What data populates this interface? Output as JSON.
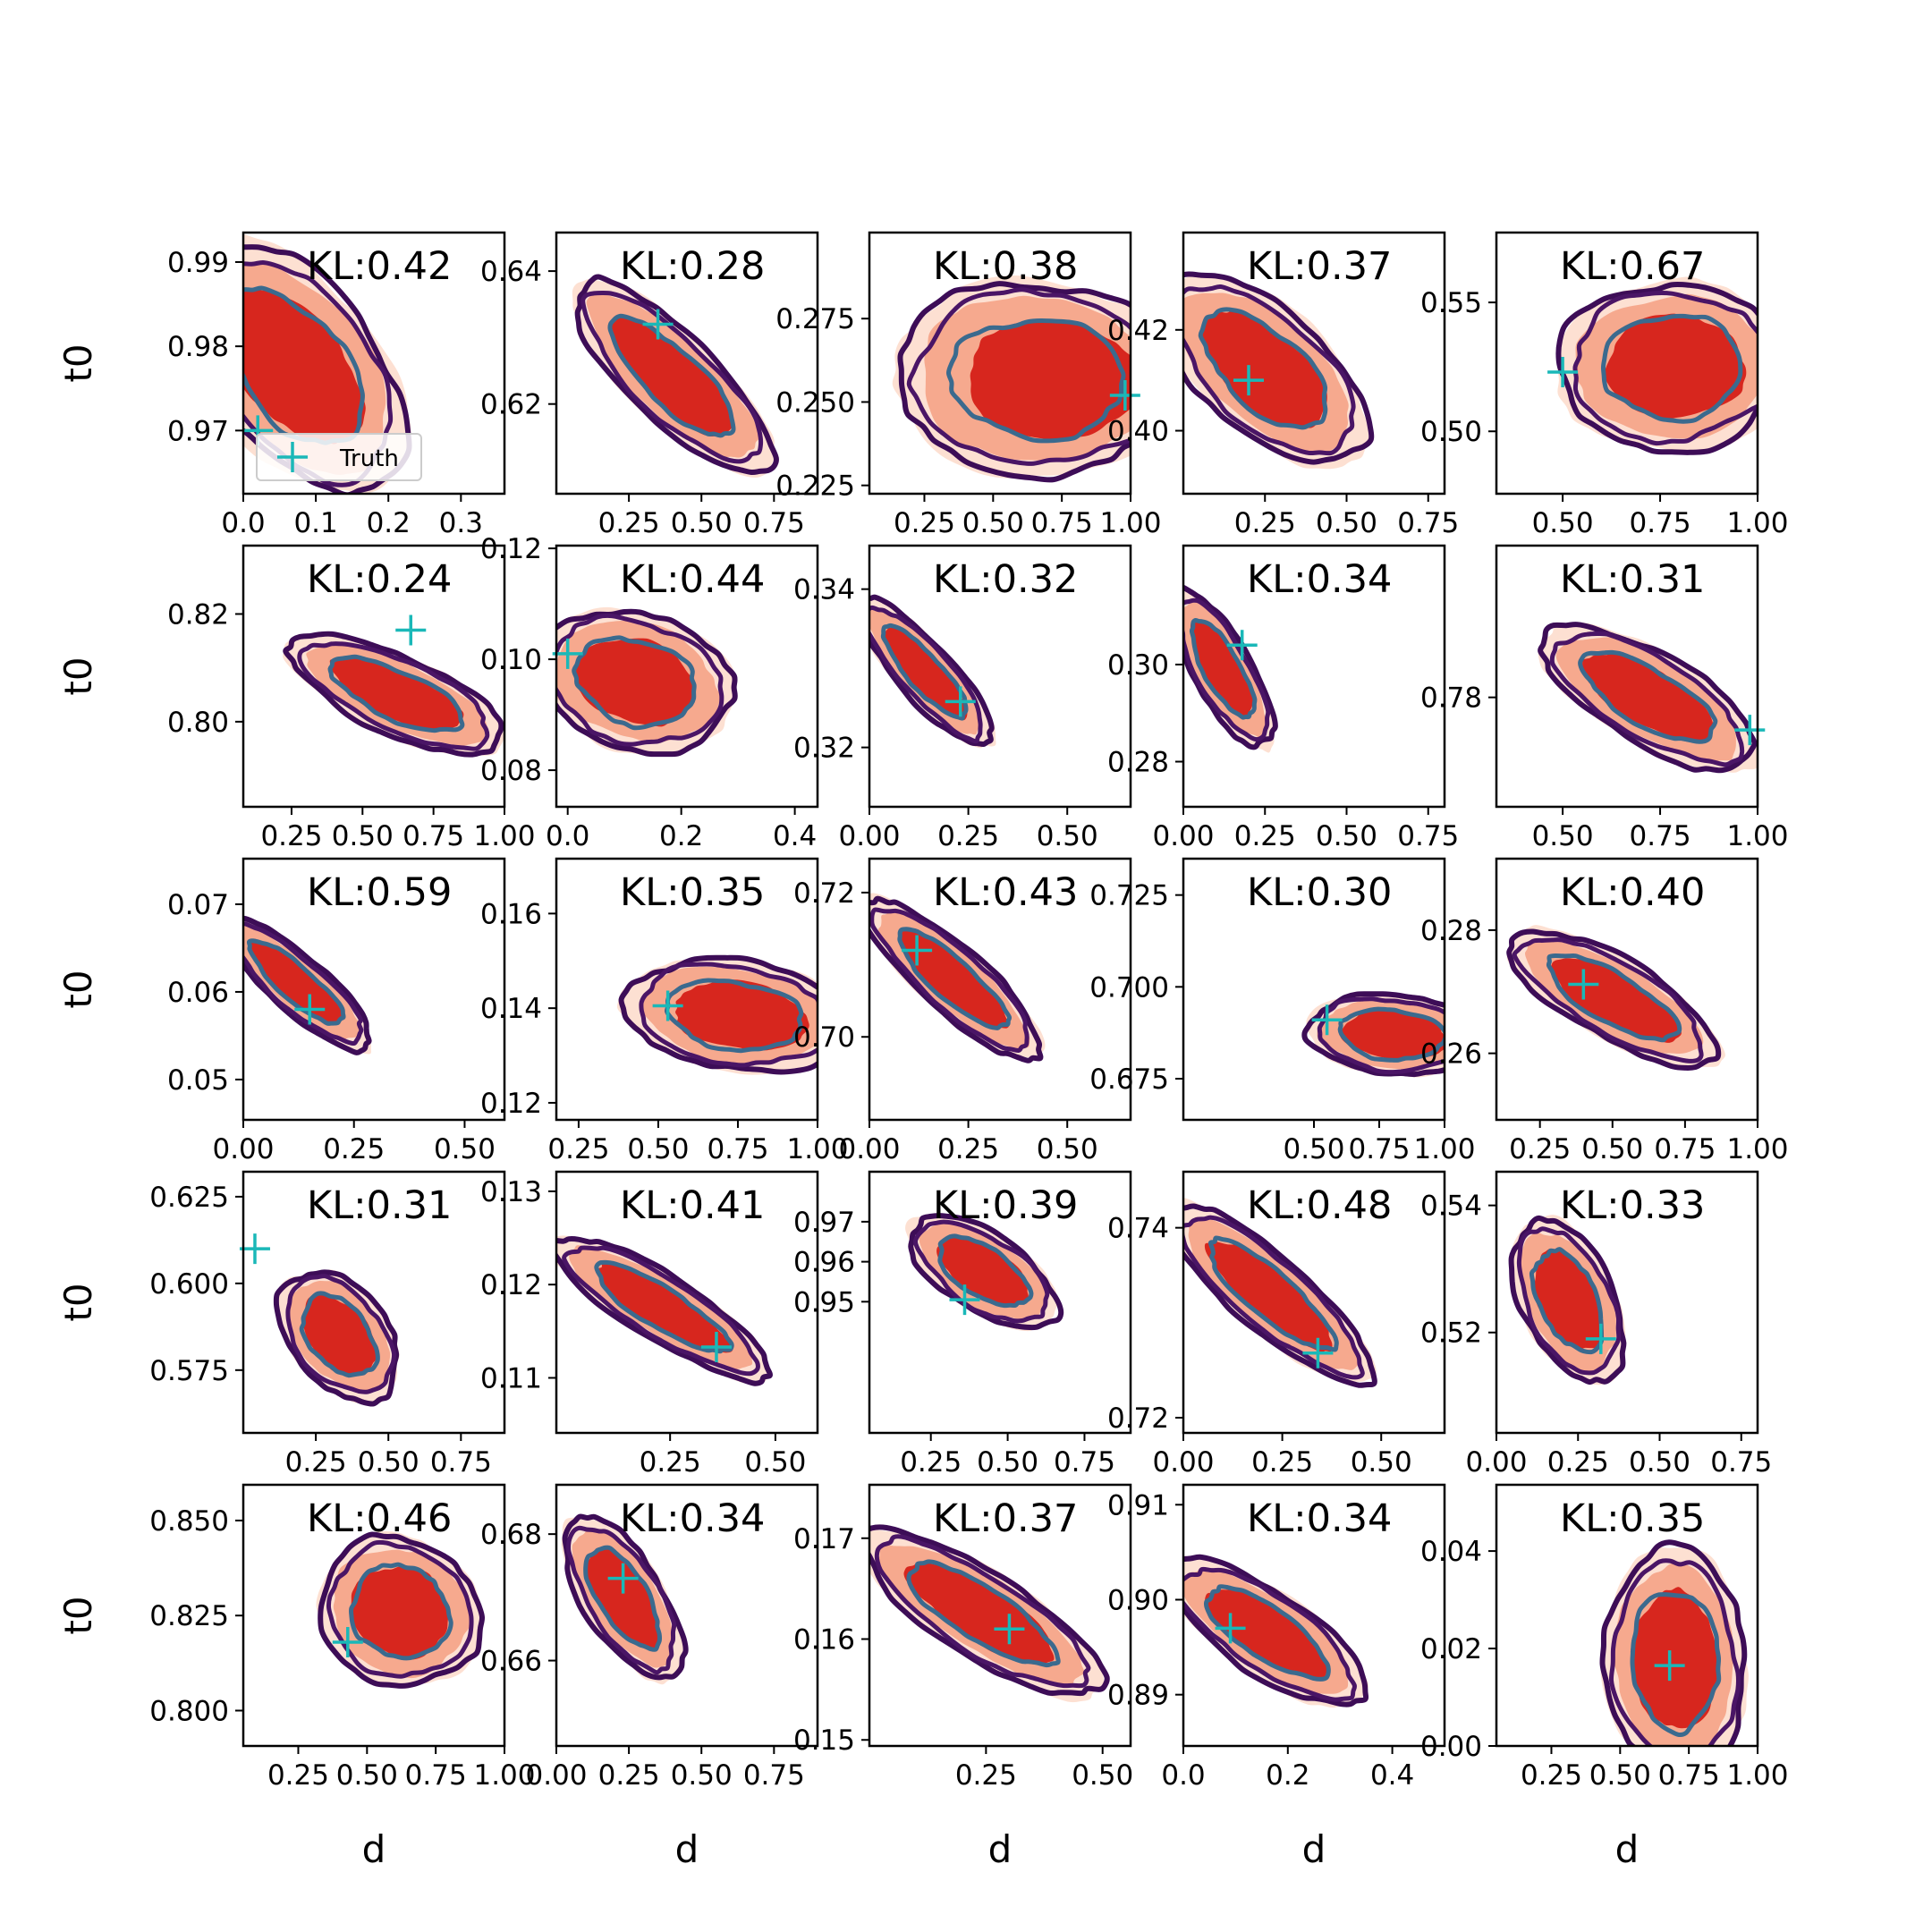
{
  "colors": {
    "kde_fill_outer": "#fde0d2",
    "kde_fill_mid": "#f6a98e",
    "kde_fill_inner": "#d7261e",
    "contour_outer": "#3d0d57",
    "contour_mid": "#4a1566",
    "contour_inner": "#3b6a8e",
    "truth_marker": "#1ab8b8"
  },
  "chart_data": {
    "type": "scatter",
    "xlabel": "d",
    "ylabel": "t0",
    "legend": {
      "label": "Truth",
      "location": "lower-left"
    },
    "panels": [
      {
        "kl": "KL:0.42",
        "xlim": [
          0,
          0.36
        ],
        "ylim": [
          0.9625,
          0.9935
        ],
        "xticks": [
          0.0,
          0.1,
          0.2,
          0.3
        ],
        "xtick_labels": [
          "0.0",
          "0.1",
          "0.2",
          "0.3"
        ],
        "yticks": [
          0.97,
          0.98,
          0.99
        ],
        "ytick_labels": [
          "0.97",
          "0.98",
          "0.99"
        ],
        "truth": [
          0.02,
          0.97
        ],
        "center": [
          0.07,
          0.9775
        ],
        "spread": [
          0.09,
          0.0087
        ],
        "corr": -0.5,
        "core_shift": 0.0,
        "legend": true
      },
      {
        "kl": "KL:0.28",
        "xlim": [
          0,
          0.9
        ],
        "ylim": [
          0.6065,
          0.6458
        ],
        "xticks": [
          0.25,
          0.5,
          0.75
        ],
        "xtick_labels": [
          "0.25",
          "0.50",
          "0.75"
        ],
        "yticks": [
          0.62,
          0.64
        ],
        "ytick_labels": [
          "0.62",
          "0.64"
        ],
        "truth": [
          0.35,
          0.632
        ],
        "center": [
          0.4,
          0.624
        ],
        "spread": [
          0.2,
          0.0085
        ],
        "corr": -0.8,
        "core_shift": 0.0
      },
      {
        "kl": "KL:0.38",
        "xlim": [
          0.05,
          1.0
        ],
        "ylim": [
          0.2225,
          0.3008
        ],
        "xticks": [
          0.25,
          0.5,
          0.75,
          1.0
        ],
        "xtick_labels": [
          "0.25",
          "0.50",
          "0.75",
          "1.00"
        ],
        "yticks": [
          0.225,
          0.25,
          0.275
        ],
        "ytick_labels": [
          "0.225",
          "0.250",
          "0.275"
        ],
        "truth": [
          0.98,
          0.252
        ],
        "center": [
          0.66,
          0.257
        ],
        "spread": [
          0.3,
          0.017
        ],
        "corr": -0.05,
        "core_shift": 0.2
      },
      {
        "kl": "KL:0.37",
        "xlim": [
          0,
          0.8
        ],
        "ylim": [
          0.3875,
          0.4393
        ],
        "xticks": [
          0.25,
          0.5,
          0.75
        ],
        "xtick_labels": [
          "0.25",
          "0.50",
          "0.75"
        ],
        "yticks": [
          0.4,
          0.42
        ],
        "ytick_labels": [
          "0.40",
          "0.42"
        ],
        "truth": [
          0.2,
          0.41
        ],
        "center": [
          0.25,
          0.412
        ],
        "spread": [
          0.18,
          0.011
        ],
        "corr": -0.6,
        "core_shift": 0.0
      },
      {
        "kl": "KL:0.67",
        "xlim": [
          0.33,
          1.0
        ],
        "ylim": [
          0.4758,
          0.5771
        ],
        "xticks": [
          0.5,
          0.75,
          1.0
        ],
        "xtick_labels": [
          "0.50",
          "0.75",
          "1.00"
        ],
        "yticks": [
          0.5,
          0.55
        ],
        "ytick_labels": [
          "0.50",
          "0.55"
        ],
        "truth": [
          0.5,
          0.523
        ],
        "center": [
          0.78,
          0.525
        ],
        "spread": [
          0.17,
          0.019
        ],
        "corr": 0.0,
        "core_shift": 0.05
      },
      {
        "kl": "KL:0.24",
        "xlim": [
          0.08,
          1.0
        ],
        "ylim": [
          0.7842,
          0.8327
        ],
        "xticks": [
          0.25,
          0.5,
          0.75,
          1.0
        ],
        "xtick_labels": [
          "0.25",
          "0.50",
          "0.75",
          "1.00"
        ],
        "yticks": [
          0.8,
          0.82
        ],
        "ytick_labels": [
          "0.80",
          "0.82"
        ],
        "truth": [
          0.67,
          0.817
        ],
        "center": [
          0.62,
          0.805
        ],
        "spread": [
          0.22,
          0.0065
        ],
        "corr": -0.7,
        "core_shift": 0.0
      },
      {
        "kl": "KL:0.44",
        "xlim": [
          -0.02,
          0.44
        ],
        "ylim": [
          0.0734,
          0.1205
        ],
        "xticks": [
          0.0,
          0.2,
          0.4
        ],
        "xtick_labels": [
          "0.0",
          "0.2",
          "0.4"
        ],
        "yticks": [
          0.08,
          0.1,
          0.12
        ],
        "ytick_labels": [
          "0.08",
          "0.10",
          "0.12"
        ],
        "truth": [
          0.0,
          0.101
        ],
        "center": [
          0.12,
          0.096
        ],
        "spread": [
          0.1,
          0.0075
        ],
        "corr": -0.2,
        "core_shift": 0.0
      },
      {
        "kl": "KL:0.32",
        "xlim": [
          0,
          0.66
        ],
        "ylim": [
          0.3125,
          0.3455
        ],
        "xticks": [
          0.0,
          0.25,
          0.5
        ],
        "xtick_labels": [
          "0.00",
          "0.25",
          "0.50"
        ],
        "yticks": [
          0.32,
          0.34
        ],
        "ytick_labels": [
          "0.32",
          "0.34"
        ],
        "truth": [
          0.23,
          0.3258
        ],
        "center": [
          0.14,
          0.3295
        ],
        "spread": [
          0.1,
          0.0055
        ],
        "corr": -0.85,
        "core_shift": 0.0
      },
      {
        "kl": "KL:0.34",
        "xlim": [
          0,
          0.8
        ],
        "ylim": [
          0.2707,
          0.3245
        ],
        "xticks": [
          0.0,
          0.25,
          0.5,
          0.75
        ],
        "xtick_labels": [
          "0.00",
          "0.25",
          "0.50",
          "0.75"
        ],
        "yticks": [
          0.28,
          0.3
        ],
        "ytick_labels": [
          "0.28",
          "0.30"
        ],
        "truth": [
          0.18,
          0.304
        ],
        "center": [
          0.12,
          0.299
        ],
        "spread": [
          0.09,
          0.0095
        ],
        "corr": -0.75,
        "core_shift": 0.0
      },
      {
        "kl": "KL:0.31",
        "xlim": [
          0.33,
          1.0
        ],
        "ylim": [
          0.7632,
          0.8033
        ],
        "xticks": [
          0.5,
          0.75,
          1.0
        ],
        "xtick_labels": [
          "0.50",
          "0.75",
          "1.00"
        ],
        "yticks": [
          0.78
        ],
        "ytick_labels": [
          "0.78"
        ],
        "truth": [
          0.98,
          0.775
        ],
        "center": [
          0.72,
          0.78
        ],
        "spread": [
          0.16,
          0.0065
        ],
        "corr": -0.7,
        "core_shift": 0.0
      },
      {
        "kl": "KL:0.59",
        "xlim": [
          0,
          0.59
        ],
        "ylim": [
          0.0454,
          0.0752
        ],
        "xticks": [
          0.0,
          0.25,
          0.5
        ],
        "xtick_labels": [
          "0.00",
          "0.25",
          "0.50"
        ],
        "yticks": [
          0.05,
          0.06,
          0.07
        ],
        "ytick_labels": [
          "0.05",
          "0.06",
          "0.07"
        ],
        "truth": [
          0.15,
          0.058
        ],
        "center": [
          0.12,
          0.061
        ],
        "spread": [
          0.1,
          0.0045
        ],
        "corr": -0.85,
        "core_shift": 0.0
      },
      {
        "kl": "KL:0.35",
        "xlim": [
          0.18,
          1.0
        ],
        "ylim": [
          0.1164,
          0.1716
        ],
        "xticks": [
          0.25,
          0.5,
          0.75,
          1.0
        ],
        "xtick_labels": [
          "0.25",
          "0.50",
          "0.75",
          "1.00"
        ],
        "yticks": [
          0.12,
          0.14,
          0.16
        ],
        "ytick_labels": [
          "0.12",
          "0.14",
          "0.16"
        ],
        "truth": [
          0.53,
          0.1405
        ],
        "center": [
          0.74,
          0.1385
        ],
        "spread": [
          0.2,
          0.007
        ],
        "corr": -0.2,
        "core_shift": 0.1
      },
      {
        "kl": "KL:0.43",
        "xlim": [
          0,
          0.66
        ],
        "ylim": [
          0.6885,
          0.7247
        ],
        "xticks": [
          0.0,
          0.25,
          0.5
        ],
        "xtick_labels": [
          "0.00",
          "0.25",
          "0.50"
        ],
        "yticks": [
          0.7,
          0.72
        ],
        "ytick_labels": [
          "0.70",
          "0.72"
        ],
        "truth": [
          0.12,
          0.712
        ],
        "center": [
          0.21,
          0.708
        ],
        "spread": [
          0.13,
          0.0065
        ],
        "corr": -0.85,
        "core_shift": 0.0
      },
      {
        "kl": "KL:0.30",
        "xlim": [
          0.0,
          1.0
        ],
        "ylim": [
          0.6638,
          0.7349
        ],
        "xticks": [
          0.5,
          0.75,
          1.0
        ],
        "xtick_labels": [
          "0.50",
          "0.75",
          "1.00"
        ],
        "yticks": [
          0.675,
          0.7,
          0.725
        ],
        "ytick_labels": [
          "0.675",
          "0.700",
          "0.725"
        ],
        "truth": [
          0.55,
          0.691
        ],
        "center": [
          0.8,
          0.687
        ],
        "spread": [
          0.19,
          0.0065
        ],
        "corr": -0.15,
        "core_shift": 0.05
      },
      {
        "kl": "KL:0.40",
        "xlim": [
          0.1,
          1.0
        ],
        "ylim": [
          0.2492,
          0.2916
        ],
        "xticks": [
          0.25,
          0.5,
          0.75,
          1.0
        ],
        "xtick_labels": [
          "0.25",
          "0.50",
          "0.75",
          "1.00"
        ],
        "yticks": [
          0.26,
          0.28
        ],
        "ytick_labels": [
          "0.26",
          "0.28"
        ],
        "truth": [
          0.4,
          0.2712
        ],
        "center": [
          0.5,
          0.269
        ],
        "spread": [
          0.21,
          0.0065
        ],
        "corr": -0.75,
        "core_shift": 0.05
      },
      {
        "kl": "KL:0.31",
        "xlim": [
          0.0,
          0.9
        ],
        "ylim": [
          0.5569,
          0.6322
        ],
        "xticks": [
          0.25,
          0.5,
          0.75
        ],
        "xtick_labels": [
          "0.25",
          "0.50",
          "0.75"
        ],
        "yticks": [
          0.575,
          0.6,
          0.625
        ],
        "ytick_labels": [
          "0.575",
          "0.600",
          "0.625"
        ],
        "truth": [
          0.04,
          0.61
        ],
        "center": [
          0.33,
          0.585
        ],
        "spread": [
          0.12,
          0.011
        ],
        "corr": -0.4,
        "core_shift": 0.0
      },
      {
        "kl": "KL:0.41",
        "xlim": [
          -0.02,
          0.6
        ],
        "ylim": [
          0.1041,
          0.1321
        ],
        "xticks": [
          0.25,
          0.5
        ],
        "xtick_labels": [
          "0.25",
          "0.50"
        ],
        "yticks": [
          0.11,
          0.12,
          0.13
        ],
        "ytick_labels": [
          "0.11",
          "0.12",
          "0.13"
        ],
        "truth": [
          0.36,
          0.1133
        ],
        "center": [
          0.23,
          0.1175
        ],
        "spread": [
          0.15,
          0.0045
        ],
        "corr": -0.85,
        "core_shift": 0.0
      },
      {
        "kl": "KL:0.39",
        "xlim": [
          0.05,
          0.9
        ],
        "ylim": [
          0.9172,
          0.9825
        ],
        "xticks": [
          0.25,
          0.5,
          0.75
        ],
        "xtick_labels": [
          "0.25",
          "0.50",
          "0.75"
        ],
        "yticks": [
          0.95,
          0.96,
          0.97
        ],
        "ytick_labels": [
          "0.95",
          "0.96",
          "0.97"
        ],
        "truth": [
          0.36,
          0.9505
        ],
        "center": [
          0.42,
          0.9575
        ],
        "spread": [
          0.14,
          0.0082
        ],
        "corr": -0.6,
        "core_shift": 0.0
      },
      {
        "kl": "KL:0.48",
        "xlim": [
          0,
          0.66
        ],
        "ylim": [
          0.7184,
          0.7459
        ],
        "xticks": [
          0.0,
          0.25,
          0.5
        ],
        "xtick_labels": [
          "0.00",
          "0.25",
          "0.50"
        ],
        "yticks": [
          0.72,
          0.74
        ],
        "ytick_labels": [
          "0.72",
          "0.74"
        ],
        "truth": [
          0.34,
          0.7268
        ],
        "center": [
          0.22,
          0.733
        ],
        "spread": [
          0.15,
          0.0055
        ],
        "corr": -0.85,
        "core_shift": 0.0
      },
      {
        "kl": "KL:0.33",
        "xlim": [
          0,
          0.8
        ],
        "ylim": [
          0.5042,
          0.5453
        ],
        "xticks": [
          0.0,
          0.25,
          0.5,
          0.75
        ],
        "xtick_labels": [
          "0.00",
          "0.25",
          "0.50",
          "0.75"
        ],
        "yticks": [
          0.52,
          0.54
        ],
        "ytick_labels": [
          "0.52",
          "0.54"
        ],
        "truth": [
          0.32,
          0.519
        ],
        "center": [
          0.22,
          0.525
        ],
        "spread": [
          0.1,
          0.0075
        ],
        "corr": -0.45,
        "core_shift": 0.0
      },
      {
        "kl": "KL:0.46",
        "xlim": [
          0.05,
          1.0
        ],
        "ylim": [
          0.7907,
          0.8594
        ],
        "xticks": [
          0.25,
          0.5,
          0.75,
          1.0
        ],
        "xtick_labels": [
          "0.25",
          "0.50",
          "0.75",
          "1.00"
        ],
        "yticks": [
          0.8,
          0.825,
          0.85
        ],
        "ytick_labels": [
          "0.800",
          "0.825",
          "0.850"
        ],
        "truth": [
          0.43,
          0.818
        ],
        "center": [
          0.62,
          0.826
        ],
        "spread": [
          0.17,
          0.0115
        ],
        "corr": -0.1,
        "core_shift": 0.0
      },
      {
        "kl": "KL:0.34",
        "xlim": [
          0,
          0.9
        ],
        "ylim": [
          0.6465,
          0.6878
        ],
        "xticks": [
          0.0,
          0.25,
          0.5,
          0.75
        ],
        "xtick_labels": [
          "0.00",
          "0.25",
          "0.50",
          "0.75"
        ],
        "yticks": [
          0.66,
          0.68
        ],
        "ytick_labels": [
          "0.66",
          "0.68"
        ],
        "truth": [
          0.23,
          0.673
        ],
        "center": [
          0.23,
          0.67
        ],
        "spread": [
          0.12,
          0.0075
        ],
        "corr": -0.65,
        "core_shift": 0.0
      },
      {
        "kl": "KL:0.37",
        "xlim": [
          0,
          0.56
        ],
        "ylim": [
          0.1494,
          0.1753
        ],
        "xticks": [
          0.25,
          0.5
        ],
        "xtick_labels": [
          "0.25",
          "0.50"
        ],
        "yticks": [
          0.15,
          0.16,
          0.17
        ],
        "ytick_labels": [
          "0.15",
          "0.16",
          "0.17"
        ],
        "truth": [
          0.3,
          0.161
        ],
        "center": [
          0.24,
          0.1625
        ],
        "spread": [
          0.15,
          0.0048
        ],
        "corr": -0.8,
        "core_shift": 0.0
      },
      {
        "kl": "KL:0.34",
        "xlim": [
          0,
          0.5
        ],
        "ylim": [
          0.8846,
          0.9121
        ],
        "xticks": [
          0.0,
          0.2,
          0.4
        ],
        "xtick_labels": [
          "0.0",
          "0.2",
          "0.4"
        ],
        "yticks": [
          0.89,
          0.9,
          0.91
        ],
        "ytick_labels": [
          "0.89",
          "0.90",
          "0.91"
        ],
        "truth": [
          0.09,
          0.897
        ],
        "center": [
          0.16,
          0.8965
        ],
        "spread": [
          0.11,
          0.0045
        ],
        "corr": -0.75,
        "core_shift": 0.0
      },
      {
        "kl": "KL:0.35",
        "xlim": [
          0.05,
          1.0
        ],
        "ylim": [
          0.0,
          0.0536
        ],
        "xticks": [
          0.25,
          0.5,
          0.75,
          1.0
        ],
        "xtick_labels": [
          "0.25",
          "0.50",
          "0.75",
          "1.00"
        ],
        "yticks": [
          0.0,
          0.02,
          0.04
        ],
        "ytick_labels": [
          "0.00",
          "0.02",
          "0.04"
        ],
        "truth": [
          0.68,
          0.0165
        ],
        "center": [
          0.7,
          0.0175
        ],
        "spread": [
          0.15,
          0.0135
        ],
        "corr": -0.05,
        "core_shift": 0.0
      }
    ]
  }
}
